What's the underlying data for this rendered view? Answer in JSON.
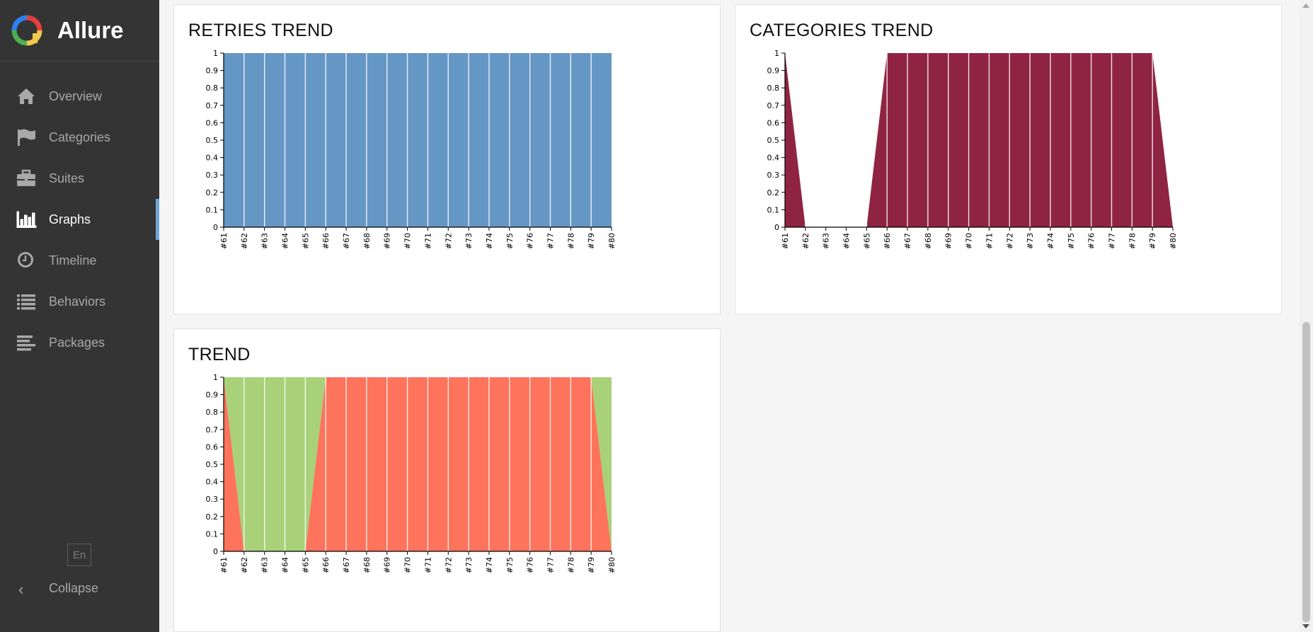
{
  "app": {
    "name": "Allure"
  },
  "sidebar": {
    "items": [
      {
        "label": "Overview",
        "icon": "home-icon"
      },
      {
        "label": "Categories",
        "icon": "flag-icon"
      },
      {
        "label": "Suites",
        "icon": "briefcase-icon"
      },
      {
        "label": "Graphs",
        "icon": "bar-chart-icon",
        "active": true
      },
      {
        "label": "Timeline",
        "icon": "clock-icon"
      },
      {
        "label": "Behaviors",
        "icon": "list-icon"
      },
      {
        "label": "Packages",
        "icon": "align-left-icon"
      }
    ],
    "language": "En",
    "collapse_label": "Collapse"
  },
  "colors": {
    "sidebar": "#343434",
    "accent": "#6ea6d8",
    "retries": "#6597c4",
    "category": "#8f2442",
    "passed": "#a8d17a",
    "failed": "#fd735c"
  },
  "chart_data": [
    {
      "type": "area",
      "title": "RETRIES TREND",
      "categories": [
        "#61",
        "#62",
        "#63",
        "#64",
        "#65",
        "#66",
        "#67",
        "#68",
        "#69",
        "#70",
        "#71",
        "#72",
        "#73",
        "#74",
        "#75",
        "#76",
        "#77",
        "#78",
        "#79",
        "#80"
      ],
      "ylim": [
        0,
        1
      ],
      "yticks": [
        "0",
        "0.1",
        "0.2",
        "0.3",
        "0.4",
        "0.5",
        "0.6",
        "0.7",
        "0.8",
        "0.9",
        "1"
      ],
      "series": [
        {
          "color": "#6597c4",
          "values": [
            1,
            1,
            1,
            1,
            1,
            1,
            1,
            1,
            1,
            1,
            1,
            1,
            1,
            1,
            1,
            1,
            1,
            1,
            1,
            1
          ]
        }
      ]
    },
    {
      "type": "area",
      "title": "CATEGORIES TREND",
      "categories": [
        "#61",
        "#62",
        "#63",
        "#64",
        "#65",
        "#66",
        "#67",
        "#68",
        "#69",
        "#70",
        "#71",
        "#72",
        "#73",
        "#74",
        "#75",
        "#76",
        "#77",
        "#78",
        "#79",
        "#80"
      ],
      "ylim": [
        0,
        1
      ],
      "yticks": [
        "0",
        "0.1",
        "0.2",
        "0.3",
        "0.4",
        "0.5",
        "0.6",
        "0.7",
        "0.8",
        "0.9",
        "1"
      ],
      "series": [
        {
          "color": "#8f2442",
          "values": [
            1,
            0,
            0,
            0,
            0,
            1,
            1,
            1,
            1,
            1,
            1,
            1,
            1,
            1,
            1,
            1,
            1,
            1,
            1,
            0
          ]
        }
      ]
    },
    {
      "type": "area",
      "title": "TREND",
      "categories": [
        "#61",
        "#62",
        "#63",
        "#64",
        "#65",
        "#66",
        "#67",
        "#68",
        "#69",
        "#70",
        "#71",
        "#72",
        "#73",
        "#74",
        "#75",
        "#76",
        "#77",
        "#78",
        "#79",
        "#80"
      ],
      "ylim": [
        0,
        1
      ],
      "yticks": [
        "0",
        "0.1",
        "0.2",
        "0.3",
        "0.4",
        "0.5",
        "0.6",
        "0.7",
        "0.8",
        "0.9",
        "1"
      ],
      "stacked": true,
      "series": [
        {
          "color": "#fd735c",
          "values": [
            1,
            0,
            0,
            0,
            0,
            1,
            1,
            1,
            1,
            1,
            1,
            1,
            1,
            1,
            1,
            1,
            1,
            1,
            1,
            0
          ]
        },
        {
          "color": "#a8d17a",
          "values": [
            0,
            1,
            1,
            1,
            1,
            0,
            0,
            0,
            0,
            0,
            0,
            0,
            0,
            0,
            0,
            0,
            0,
            0,
            0,
            1
          ]
        }
      ]
    }
  ]
}
